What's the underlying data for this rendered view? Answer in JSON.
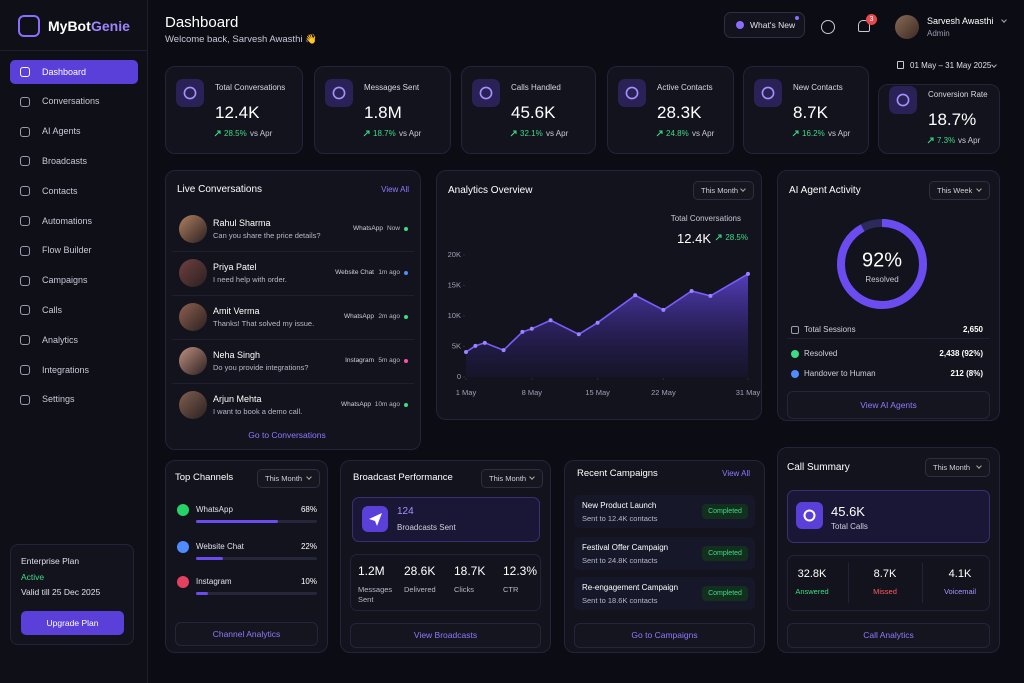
{
  "brand": [
    "MyBot",
    "Genie"
  ],
  "nav": [
    "Dashboard",
    "Conversations",
    "AI Agents",
    "Broadcasts",
    "Contacts",
    "Automations",
    "Flow Builder",
    "Campaigns",
    "Calls",
    "Analytics",
    "Integrations",
    "Settings"
  ],
  "plan": {
    "name": "Enterprise Plan",
    "status": "Active",
    "valid": "Valid till 25 Dec 2025",
    "button": "Upgrade Plan"
  },
  "header": {
    "title": "Dashboard",
    "welcome": "Welcome back, Sarvesh Awasthi 👋",
    "whats_new": "What's New",
    "notifications": "3",
    "user": "Sarvesh Awasthi",
    "role": "Admin",
    "date_range": "01 May – 31 May 2025"
  },
  "stats": [
    {
      "label": "Total Conversations",
      "value": "12.4K",
      "change": "28.5%",
      "compare": "vs Apr"
    },
    {
      "label": "Messages Sent",
      "value": "1.8M",
      "change": "18.7%",
      "compare": "vs Apr"
    },
    {
      "label": "Calls Handled",
      "value": "45.6K",
      "change": "32.1%",
      "compare": "vs Apr"
    },
    {
      "label": "Active Contacts",
      "value": "28.3K",
      "change": "24.8%",
      "compare": "vs Apr"
    },
    {
      "label": "New Contacts",
      "value": "8.7K",
      "change": "16.2%",
      "compare": "vs Apr"
    },
    {
      "label": "Conversion Rate",
      "value": "18.7%",
      "change": "7.3%",
      "compare": "vs Apr"
    }
  ],
  "live": {
    "title": "Live Conversations",
    "action": "View All",
    "footer": "Go to Conversations",
    "items": [
      {
        "name": "Rahul Sharma",
        "message": "Can you share the price details?",
        "channel": "WhatsApp",
        "time": "Now"
      },
      {
        "name": "Priya Patel",
        "message": "I need help with order.",
        "channel": "Website Chat",
        "time": "1m ago"
      },
      {
        "name": "Amit Verma",
        "message": "Thanks! That solved my issue.",
        "channel": "WhatsApp",
        "time": "2m ago"
      },
      {
        "name": "Neha Singh",
        "message": "Do you provide integrations?",
        "channel": "Instagram",
        "time": "5m ago"
      },
      {
        "name": "Arjun Mehta",
        "message": "I want to book a demo call.",
        "channel": "WhatsApp",
        "time": "10m ago"
      }
    ]
  },
  "analytics": {
    "title": "Analytics Overview",
    "filter": "This Month",
    "metric_label": "Total Conversations",
    "metric_value": "12.4K",
    "metric_change": "28.5%",
    "chart": {
      "type": "area",
      "color": "#7b5cff",
      "x": [
        1,
        2,
        3,
        5,
        7,
        8,
        10,
        13,
        15,
        19,
        22,
        25,
        27,
        31
      ],
      "values": [
        4100,
        5100,
        5600,
        4400,
        7400,
        7900,
        9300,
        7000,
        8900,
        13400,
        11000,
        14100,
        13300,
        16900
      ],
      "xlim": [
        1,
        31
      ],
      "xticks": [
        {
          "value": 1,
          "label": "1 May"
        },
        {
          "value": 8,
          "label": "8 May"
        },
        {
          "value": 15,
          "label": "15 May"
        },
        {
          "value": 22,
          "label": "22 May"
        },
        {
          "value": 31,
          "label": "31 May"
        }
      ],
      "ylim": [
        0,
        20000
      ],
      "yticks": [
        0,
        {
          "value": 5000,
          "label": "5K"
        },
        {
          "value": 10000,
          "label": "10K"
        },
        {
          "value": 15000,
          "label": "15K"
        },
        {
          "value": 20000,
          "label": "20K"
        }
      ]
    }
  },
  "ai_activity": {
    "title": "AI Agent Activity",
    "filter": "This Week",
    "gauge": {
      "value": 92,
      "label": "92%",
      "sublabel": "Resolved"
    },
    "rows": [
      {
        "label": "Total Sessions",
        "value": "2,650"
      },
      {
        "label": "Resolved",
        "value": "2,438 (92%)"
      },
      {
        "label": "Handover to Human",
        "value": "212 (8%)"
      }
    ],
    "footer": "View AI Agents"
  },
  "channels": {
    "title": "Top Channels",
    "filter": "This Month",
    "items": [
      {
        "name": "WhatsApp",
        "value": 68,
        "label": "68%"
      },
      {
        "name": "Website Chat",
        "value": 22,
        "label": "22%"
      },
      {
        "name": "Instagram",
        "value": 10,
        "label": "10%"
      }
    ],
    "footer": "Channel Analytics"
  },
  "broadcast": {
    "title": "Broadcast Performance",
    "filter": "This Month",
    "highlight": {
      "value": "124",
      "label": "Broadcasts Sent"
    },
    "metrics": [
      {
        "value": "1.2M",
        "label": "Messages Sent"
      },
      {
        "value": "28.6K",
        "label": "Delivered"
      },
      {
        "value": "18.7K",
        "label": "Clicks"
      },
      {
        "value": "12.3%",
        "label": "CTR"
      }
    ],
    "footer": "View Broadcasts"
  },
  "campaigns": {
    "title": "Recent Campaigns",
    "action": "View All",
    "items": [
      {
        "name": "New Product Launch",
        "sub": "Sent to 12.4K contacts",
        "status": "Completed"
      },
      {
        "name": "Festival Offer Campaign",
        "sub": "Sent to 24.8K contacts",
        "status": "Completed"
      },
      {
        "name": "Re-engagement Campaign",
        "sub": "Sent to 18.6K contacts",
        "status": "Completed"
      }
    ],
    "footer": "Go to Campaigns"
  },
  "calls": {
    "title": "Call Summary",
    "filter": "This Month",
    "total": {
      "value": "45.6K",
      "label": "Total Calls"
    },
    "breakdown": [
      {
        "value": "32.8K",
        "label": "Answered"
      },
      {
        "value": "8.7K",
        "label": "Missed"
      },
      {
        "value": "4.1K",
        "label": "Voicemail"
      }
    ],
    "footer": "Call Analytics"
  }
}
